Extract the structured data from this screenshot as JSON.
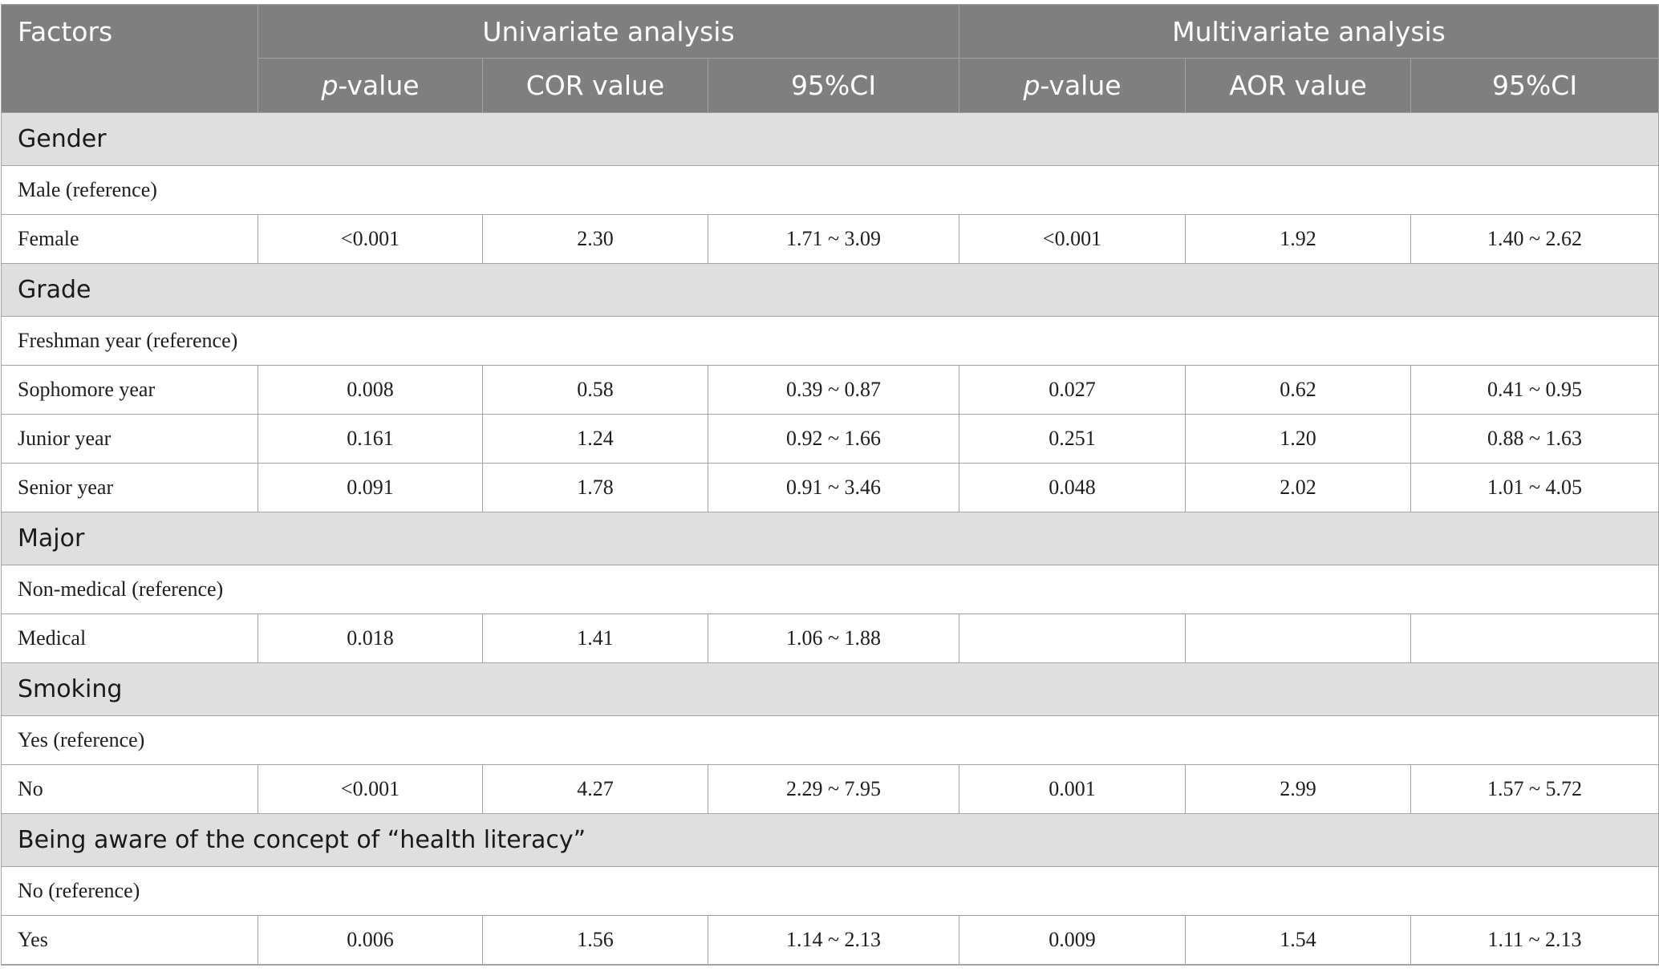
{
  "header": {
    "factors": "Factors",
    "univariate": "Univariate analysis",
    "multivariate": "Multivariate analysis",
    "p_value_italic": "p",
    "p_value_rest": "-value",
    "cor_value": "COR value",
    "aor_value": "AOR value",
    "ci": "95%CI"
  },
  "groups": [
    {
      "title": "Gender",
      "reference": "Male (reference)",
      "rows": [
        {
          "factor": "Female",
          "u_p": "<0.001",
          "cor": "2.30",
          "u_ci": "1.71 ~ 3.09",
          "m_p": "<0.001",
          "aor": "1.92",
          "m_ci": "1.40 ~ 2.62"
        }
      ]
    },
    {
      "title": "Grade",
      "reference": "Freshman year (reference)",
      "rows": [
        {
          "factor": "Sophomore year",
          "u_p": "0.008",
          "cor": "0.58",
          "u_ci": "0.39 ~ 0.87",
          "m_p": "0.027",
          "aor": "0.62",
          "m_ci": "0.41 ~ 0.95"
        },
        {
          "factor": "Junior year",
          "u_p": "0.161",
          "cor": "1.24",
          "u_ci": "0.92 ~ 1.66",
          "m_p": "0.251",
          "aor": "1.20",
          "m_ci": "0.88 ~ 1.63"
        },
        {
          "factor": "Senior year",
          "u_p": "0.091",
          "cor": "1.78",
          "u_ci": "0.91 ~ 3.46",
          "m_p": "0.048",
          "aor": "2.02",
          "m_ci": "1.01 ~ 4.05"
        }
      ]
    },
    {
      "title": "Major",
      "reference": "Non-medical (reference)",
      "rows": [
        {
          "factor": "Medical",
          "u_p": "0.018",
          "cor": "1.41",
          "u_ci": "1.06 ~ 1.88",
          "m_p": "",
          "aor": "",
          "m_ci": ""
        }
      ]
    },
    {
      "title": "Smoking",
      "reference": "Yes (reference)",
      "rows": [
        {
          "factor": "No",
          "u_p": "<0.001",
          "cor": "4.27",
          "u_ci": "2.29 ~ 7.95",
          "m_p": "0.001",
          "aor": "2.99",
          "m_ci": "1.57 ~ 5.72"
        }
      ]
    },
    {
      "title": "Being aware of the concept of “health literacy”",
      "reference": "No (reference)",
      "rows": [
        {
          "factor": "Yes",
          "u_p": "0.006",
          "cor": "1.56",
          "u_ci": "1.14 ~ 2.13",
          "m_p": "0.009",
          "aor": "1.54",
          "m_ci": "1.11 ~ 2.13"
        }
      ]
    }
  ]
}
